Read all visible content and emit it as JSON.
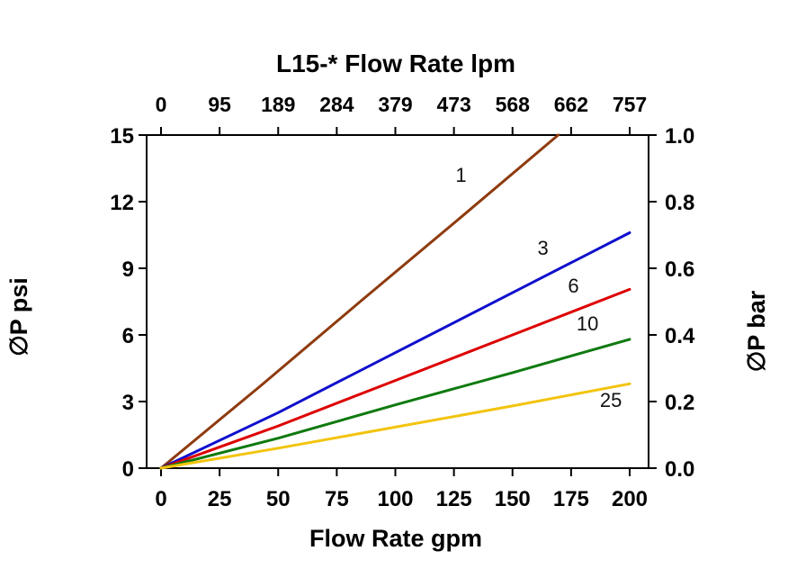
{
  "chart_data": {
    "type": "line",
    "title": "L15-* Flow Rate lpm",
    "xlabel_bottom": "Flow Rate gpm",
    "ylabel_left": "∅P psi",
    "ylabel_right": "∅P bar",
    "xlim": [
      0,
      200
    ],
    "ylim": [
      0,
      15
    ],
    "grid": false,
    "legend_position": "inline-labels",
    "x_bottom_ticks": [
      0,
      25,
      50,
      75,
      100,
      125,
      150,
      175,
      200
    ],
    "x_top_ticks": [
      "0",
      "95",
      "189",
      "284",
      "379",
      "473",
      "568",
      "662",
      "757"
    ],
    "y_left_ticks": [
      0,
      3,
      6,
      9,
      12,
      15
    ],
    "y_right_ticks": [
      "0.0",
      "0.2",
      "0.4",
      "0.6",
      "0.8",
      "1.0"
    ],
    "axis_color": "#000000",
    "series": [
      {
        "name": "1",
        "color": "#8E3B0E",
        "x": [
          0,
          43,
          85,
          128,
          169.5
        ],
        "y": [
          0,
          3.75,
          7.5,
          11.3,
          15
        ]
      },
      {
        "name": "3",
        "color": "#0F0FCE",
        "x": [
          0,
          50,
          100,
          150,
          200
        ],
        "y": [
          0,
          2.5,
          5.2,
          7.9,
          10.6
        ]
      },
      {
        "name": "6",
        "color": "#DD0000",
        "x": [
          0,
          50,
          100,
          150,
          200
        ],
        "y": [
          0,
          1.9,
          3.95,
          6.0,
          8.05
        ]
      },
      {
        "name": "10",
        "color": "#0E7A0E",
        "x": [
          0,
          50,
          100,
          150,
          200
        ],
        "y": [
          0,
          1.35,
          2.85,
          4.3,
          5.8
        ]
      },
      {
        "name": "25",
        "color": "#F2C40F",
        "x": [
          0,
          50,
          100,
          150,
          200
        ],
        "y": [
          0,
          0.9,
          1.85,
          2.8,
          3.8
        ]
      }
    ],
    "series_labels": [
      {
        "text": "1",
        "x": 128,
        "y": 12.9
      },
      {
        "text": "3",
        "x": 163,
        "y": 9.6
      },
      {
        "text": "6",
        "x": 176,
        "y": 7.9
      },
      {
        "text": "10",
        "x": 182,
        "y": 6.2
      },
      {
        "text": "25",
        "x": 192,
        "y": 2.75
      }
    ]
  }
}
